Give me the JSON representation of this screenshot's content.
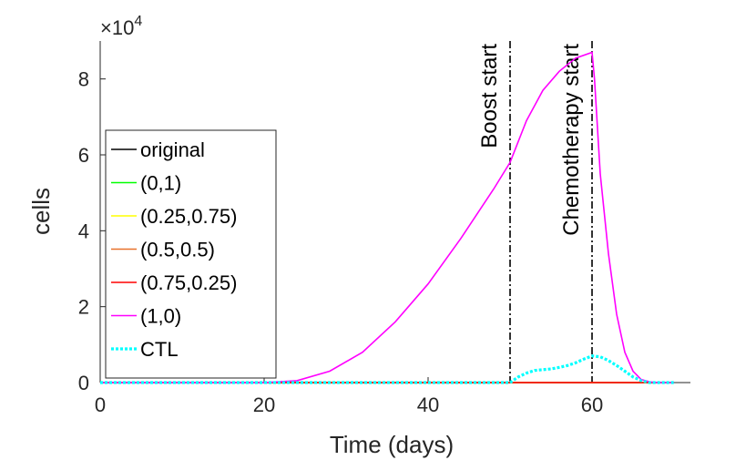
{
  "chart_data": {
    "type": "line",
    "title": "",
    "xlabel": "Time (days)",
    "ylabel": "cells",
    "exponent_label": "×10",
    "exponent_power": "4",
    "xlim": [
      0,
      72
    ],
    "ylim": [
      0,
      9
    ],
    "xticks": [
      0,
      20,
      40,
      60
    ],
    "xtick_labels": [
      "0",
      "20",
      "40",
      "60"
    ],
    "yticks": [
      0,
      2,
      4,
      6,
      8
    ],
    "ytick_labels": [
      "0",
      "2",
      "4",
      "6",
      "8"
    ],
    "legend_position": "left",
    "series": [
      {
        "name": "original",
        "color": "#000000",
        "style": "solid",
        "x": [
          0,
          70
        ],
        "y": [
          0,
          0
        ]
      },
      {
        "name": "(0,1)",
        "color": "#00ff00",
        "style": "solid",
        "x": [
          0,
          70
        ],
        "y": [
          0,
          0
        ]
      },
      {
        "name": "(0.25,0.75)",
        "color": "#ffff00",
        "style": "solid",
        "x": [
          0,
          70
        ],
        "y": [
          0,
          0
        ]
      },
      {
        "name": "(0.5,0.5)",
        "color": "#e8702a",
        "style": "solid",
        "x": [
          0,
          70
        ],
        "y": [
          0,
          0
        ]
      },
      {
        "name": "(0.75,0.25)",
        "color": "#ff0000",
        "style": "solid",
        "x": [
          0,
          70
        ],
        "y": [
          0,
          0
        ]
      },
      {
        "name": "(1,0)",
        "color": "#ff00ff",
        "style": "solid",
        "x": [
          0,
          20,
          24,
          28,
          32,
          36,
          40,
          44,
          48,
          50,
          52,
          54,
          56,
          58,
          60,
          60.3,
          61,
          62,
          63,
          64,
          65,
          66,
          67,
          68,
          70
        ],
        "y": [
          0,
          0,
          0.05,
          0.3,
          0.8,
          1.6,
          2.6,
          3.8,
          5.1,
          5.8,
          6.9,
          7.7,
          8.2,
          8.55,
          8.7,
          8.0,
          5.5,
          3.4,
          1.8,
          0.8,
          0.3,
          0.08,
          0.02,
          0,
          0
        ]
      },
      {
        "name": "CTL",
        "color": "#00ffff",
        "style": "dotted",
        "x": [
          0,
          50,
          51,
          52,
          53,
          54,
          55,
          56,
          57,
          58,
          59,
          60,
          61,
          62,
          63,
          64,
          65,
          66,
          67,
          68,
          70
        ],
        "y": [
          0,
          0,
          0.15,
          0.25,
          0.32,
          0.34,
          0.36,
          0.4,
          0.45,
          0.52,
          0.62,
          0.7,
          0.68,
          0.58,
          0.45,
          0.3,
          0.15,
          0.05,
          0,
          0,
          0
        ]
      }
    ],
    "vlines": [
      {
        "x": 50,
        "label": "Boost start"
      },
      {
        "x": 60,
        "label": "Chemotherapy start"
      }
    ]
  }
}
